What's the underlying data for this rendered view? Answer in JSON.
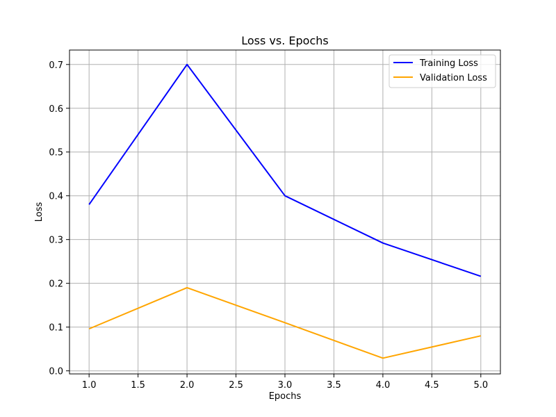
{
  "chart_data": {
    "type": "line",
    "title": "Loss vs. Epochs",
    "xlabel": "Epochs",
    "ylabel": "Loss",
    "xlim": [
      0.8,
      5.2
    ],
    "ylim": [
      -0.007,
      0.733
    ],
    "x_ticks": [
      1.0,
      1.5,
      2.0,
      2.5,
      3.0,
      3.5,
      4.0,
      4.5,
      5.0
    ],
    "x_tick_labels": [
      "1.0",
      "1.5",
      "2.0",
      "2.5",
      "3.0",
      "3.5",
      "4.0",
      "4.5",
      "5.0"
    ],
    "y_ticks": [
      0.0,
      0.1,
      0.2,
      0.3,
      0.4,
      0.5,
      0.6,
      0.7
    ],
    "y_tick_labels": [
      "0.0",
      "0.1",
      "0.2",
      "0.3",
      "0.4",
      "0.5",
      "0.6",
      "0.7"
    ],
    "grid": true,
    "legend_position": "top-right",
    "x": [
      1,
      2,
      3,
      4,
      5
    ],
    "series": [
      {
        "name": "Training Loss",
        "color": "#0000ff",
        "values": [
          0.38,
          0.7,
          0.4,
          0.292,
          0.216
        ]
      },
      {
        "name": "Validation Loss",
        "color": "#ffa500",
        "values": [
          0.096,
          0.19,
          0.11,
          0.029,
          0.08
        ]
      }
    ]
  }
}
